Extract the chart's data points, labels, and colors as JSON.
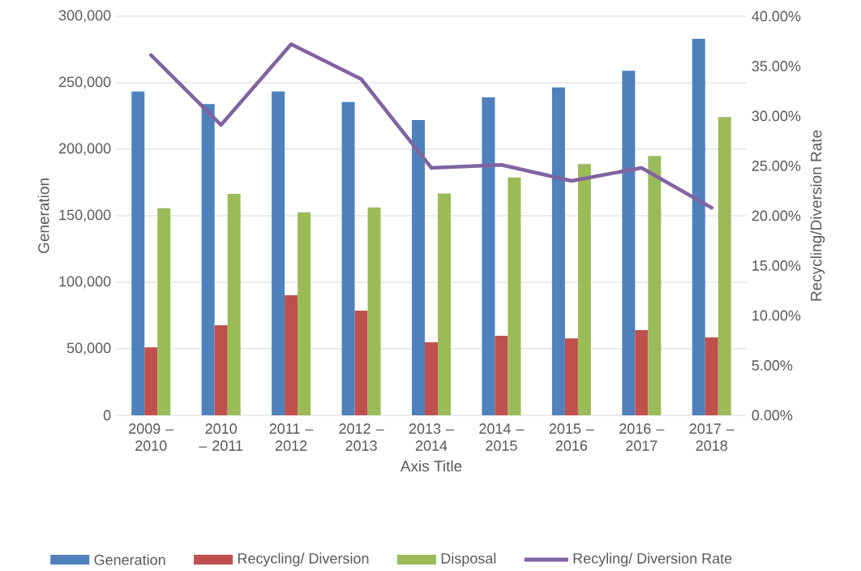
{
  "chart_data": {
    "type": "bar",
    "xlabel": "Axis Title",
    "ylabel": "Generation",
    "y2label": "Recycling/Diversion Rate",
    "categories": [
      "2009 – 2010",
      "2010 – 2011",
      "2011 – 2012",
      "2012 – 2013",
      "2013 – 2014",
      "2014 – 2015",
      "2015 – 2016",
      "2016 – 2017",
      "2017 – 2018"
    ],
    "series": [
      {
        "name": "Generation",
        "color": "#4f81bd",
        "values": [
          243500,
          234000,
          243500,
          235500,
          222000,
          239000,
          246500,
          259000,
          283000
        ]
      },
      {
        "name": "Recycling/ Diversion",
        "color": "#c0504d",
        "values": [
          51000,
          67700,
          90200,
          78700,
          54900,
          59800,
          57700,
          64000,
          58500
        ]
      },
      {
        "name": "Disposal",
        "color": "#9bbb59",
        "values": [
          155700,
          166500,
          152600,
          156300,
          166700,
          178800,
          188800,
          195000,
          224200
        ]
      },
      {
        "name": "Recyling/ Diversion Rate",
        "type": "line",
        "axis": "y2",
        "color": "#8064a2",
        "values": [
          36.1,
          29.1,
          37.2,
          33.7,
          24.8,
          25.1,
          23.5,
          24.8,
          20.8
        ]
      }
    ],
    "ylim": [
      0,
      300000
    ],
    "yticks": [
      0,
      {
        "value": 50000,
        "label": "50,000"
      },
      {
        "value": 100000,
        "label": "100,000"
      },
      {
        "value": 150000,
        "label": "150,000"
      },
      {
        "value": 200000,
        "label": "200,000"
      },
      {
        "value": 250000,
        "label": "250,000"
      },
      {
        "value": 300000,
        "label": "300,000"
      }
    ],
    "y2lim": [
      0,
      40
    ],
    "y2ticks": [
      {
        "value": 0,
        "label": "0.00%"
      },
      {
        "value": 5,
        "label": "5.00%"
      },
      {
        "value": 10,
        "label": "10.00%"
      },
      {
        "value": 15,
        "label": "15.00%"
      },
      {
        "value": 20,
        "label": "20.00%"
      },
      {
        "value": 25,
        "label": "25.00%"
      },
      {
        "value": 30,
        "label": "30.00%"
      },
      {
        "value": 35,
        "label": "35.00%"
      },
      {
        "value": 40,
        "label": "40.00%"
      }
    ],
    "grid": "y",
    "legend": "bottom"
  }
}
